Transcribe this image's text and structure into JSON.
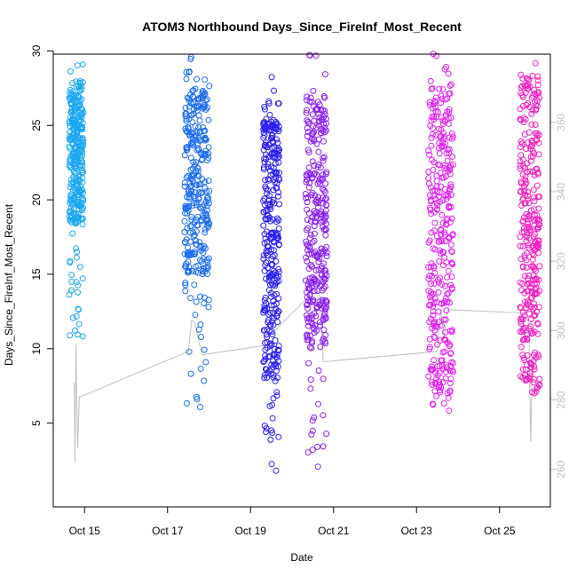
{
  "chart_data": {
    "type": "scatter",
    "title": "ATOM3 Northbound Days_Since_FireInf_Most_Recent",
    "xlabel": "Date",
    "ylabel": "Days_Since_FireInf_Most_Recent",
    "x_ticks": [
      "Oct 15",
      "Oct 17",
      "Oct 19",
      "Oct 21",
      "Oct 23",
      "Oct 25"
    ],
    "y_ticks": [
      5,
      10,
      15,
      20,
      25,
      30
    ],
    "y2_ticks": [
      260,
      280,
      300,
      320,
      340,
      360
    ],
    "xlim": [
      "2021-10-14T00:00",
      "2021-10-26T00:00"
    ],
    "ylim": [
      0,
      30.5
    ],
    "y2lim": [
      250,
      376
    ],
    "grid": false,
    "secondary_series_color": "#c0c0c0",
    "clusters": [
      {
        "date_center": "2021-10-14 19:12",
        "color": "#1aa6f0",
        "y_range": [
          10.6,
          29.8
        ],
        "y_dense": [
          18.5,
          28.0
        ]
      },
      {
        "date_center": "2021-10-17 17:00",
        "color": "#1a6cf0",
        "y_range": [
          5.9,
          29.9
        ],
        "y_dense": [
          15.0,
          27.5
        ]
      },
      {
        "date_center": "2021-10-19 12:00",
        "color": "#2a1ef0",
        "y_range": [
          1.4,
          29.0
        ],
        "y_dense": [
          8.0,
          25.5
        ]
      },
      {
        "date_center": "2021-10-20 14:00",
        "color": "#8a1ef0",
        "y_range": [
          1.7,
          29.8
        ],
        "y_dense": [
          10.0,
          27.0
        ]
      },
      {
        "date_center": "2021-10-23 14:00",
        "color": "#e21ef0",
        "y_range": [
          5.7,
          30.0
        ],
        "y_dense": [
          7.0,
          28.0
        ]
      },
      {
        "date_center": "2021-10-25 17:30",
        "color": "#f01ec0",
        "y_range": [
          6.8,
          29.7
        ],
        "y_dense": [
          7.0,
          28.5
        ]
      }
    ],
    "secondary_line_y2": [
      [
        "2021-10-14 18:00",
        285
      ],
      [
        "2021-10-14 18:30",
        262
      ],
      [
        "2021-10-14 19:00",
        296
      ],
      [
        "2021-10-14 20:00",
        266
      ],
      [
        "2021-10-14 21:00",
        281
      ],
      [
        "2021-10-14 22:00",
        281
      ],
      [
        "2021-10-17 12:00",
        294
      ],
      [
        "2021-10-17 14:00",
        303
      ],
      [
        "2021-10-17 16:00",
        302
      ],
      [
        "2021-10-17 18:00",
        297
      ],
      [
        "2021-10-17 20:00",
        293
      ],
      [
        "2021-10-19 12:00",
        296
      ],
      [
        "2021-10-19 14:00",
        300
      ],
      [
        "2021-10-20 14:00",
        312
      ],
      [
        "2021-10-20 16:00",
        310
      ],
      [
        "2021-10-20 18:00",
        291
      ],
      [
        "2021-10-23 12:00",
        294
      ],
      [
        "2021-10-23 14:00",
        306
      ],
      [
        "2021-10-23 16:00",
        298
      ],
      [
        "2021-10-23 18:00",
        306
      ],
      [
        "2021-10-25 16:00",
        305
      ],
      [
        "2021-10-25 17:00",
        300
      ],
      [
        "2021-10-25 18:00",
        268
      ],
      [
        "2021-10-25 19:00",
        292
      ]
    ]
  }
}
